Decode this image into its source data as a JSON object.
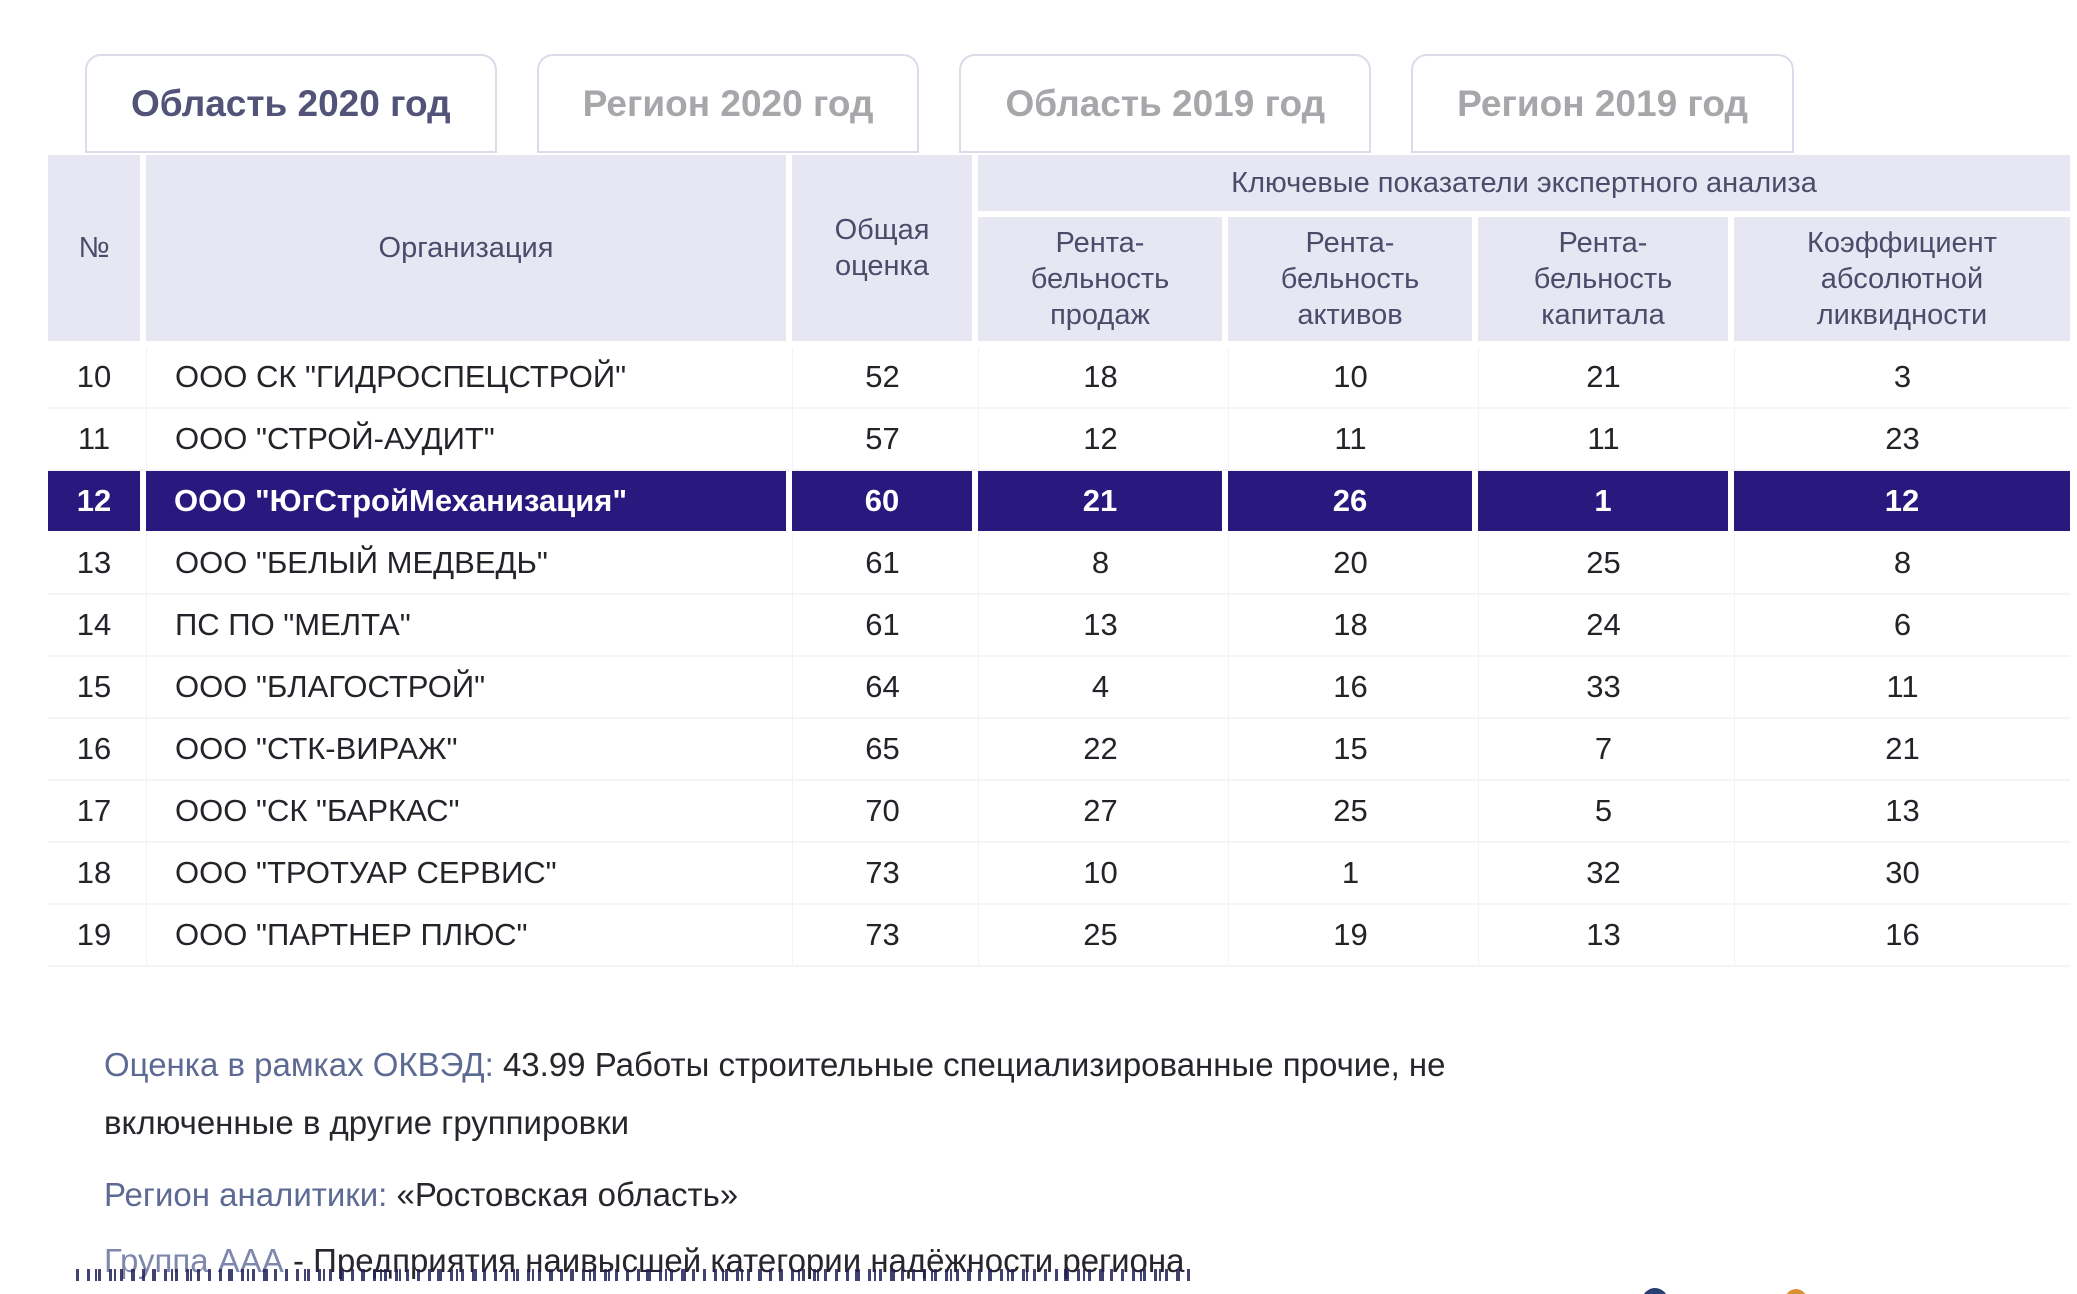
{
  "tabs": [
    {
      "label": "Область 2020 год",
      "active": true
    },
    {
      "label": "Регион 2020 год",
      "active": false
    },
    {
      "label": "Область 2019 год",
      "active": false
    },
    {
      "label": "Регион 2019 год",
      "active": false
    }
  ],
  "table": {
    "headers": {
      "num": "№",
      "org": "Организация",
      "score": "Общая\nоценка",
      "group": "Ключевые показатели экспертного анализа",
      "sub": [
        "Рента-\nбельность\nпродаж",
        "Рента-\nбельность\nактивов",
        "Рента-\nбельность\nкапитала",
        "Коэффициент\nабсолютной\nликвидности"
      ]
    },
    "rows": [
      {
        "num": "10",
        "org": "ООО СК \"ГИДРОСПЕЦСТРОЙ\"",
        "score": "52",
        "values": [
          "18",
          "10",
          "21",
          "3"
        ],
        "highlighted": false
      },
      {
        "num": "11",
        "org": "ООО \"СТРОЙ-АУДИТ\"",
        "score": "57",
        "values": [
          "12",
          "11",
          "11",
          "23"
        ],
        "highlighted": false
      },
      {
        "num": "12",
        "org": "ООО \"ЮгСтройМеханизация\"",
        "score": "60",
        "values": [
          "21",
          "26",
          "1",
          "12"
        ],
        "highlighted": true
      },
      {
        "num": "13",
        "org": "ООО \"БЕЛЫЙ МЕДВЕДЬ\"",
        "score": "61",
        "values": [
          "8",
          "20",
          "25",
          "8"
        ],
        "highlighted": false
      },
      {
        "num": "14",
        "org": "ПС ПО \"МЕЛТА\"",
        "score": "61",
        "values": [
          "13",
          "18",
          "24",
          "6"
        ],
        "highlighted": false
      },
      {
        "num": "15",
        "org": "ООО \"БЛАГОСТРОЙ\"",
        "score": "64",
        "values": [
          "4",
          "16",
          "33",
          "11"
        ],
        "highlighted": false
      },
      {
        "num": "16",
        "org": "ООО \"СТК-ВИРАЖ\"",
        "score": "65",
        "values": [
          "22",
          "15",
          "7",
          "21"
        ],
        "highlighted": false
      },
      {
        "num": "17",
        "org": "ООО \"СК \"БАРКАС\"",
        "score": "70",
        "values": [
          "27",
          "25",
          "5",
          "13"
        ],
        "highlighted": false
      },
      {
        "num": "18",
        "org": "ООО \"ТРОТУАР СЕРВИС\"",
        "score": "73",
        "values": [
          "10",
          "1",
          "32",
          "30"
        ],
        "highlighted": false
      },
      {
        "num": "19",
        "org": "ООО \"ПАРТНЕР ПЛЮС\"",
        "score": "73",
        "values": [
          "25",
          "19",
          "13",
          "16"
        ],
        "highlighted": false
      }
    ]
  },
  "footer": {
    "okved_label": "Оценка в рамках ОКВЭД:",
    "okved_value_line1": "43.99 Работы строительные специализированные прочие, не",
    "okved_value_line2": "включенные в другие группировки",
    "region_label": "Регион аналитики:",
    "region_value": "«Ростовская область»",
    "group_label": "Группа ААА",
    "group_value": "- Предприятия наивысшей категории надёжности региона"
  },
  "colors": {
    "highlight_row_bg": "#29187E",
    "header_cell_bg": "#E7E7F4",
    "active_tab_text": "#53537A",
    "inactive_tab_text": "#A7A7AB",
    "label_text": "#5D6B94",
    "share_icon_blue": "#2B3F72",
    "share_icon_orange": "#D9912F"
  }
}
